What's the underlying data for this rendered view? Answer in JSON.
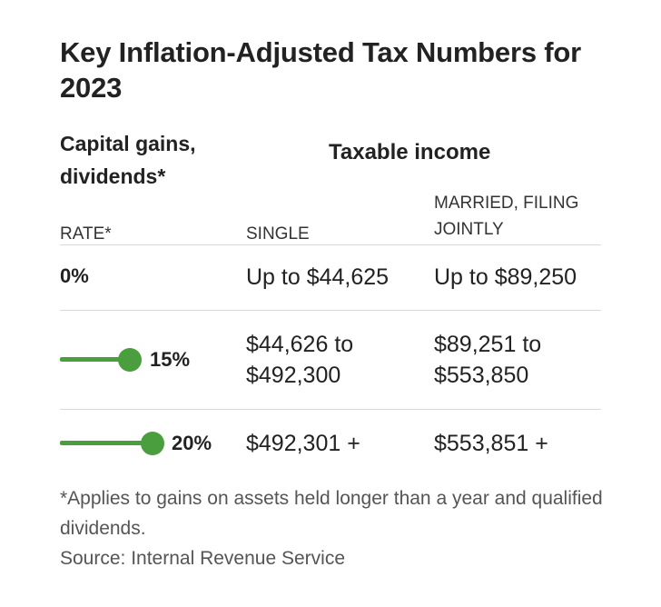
{
  "title": "Key Inflation-Adjusted Tax Numbers for 2023",
  "headers": {
    "capital_gains": "Capital gains, dividends*",
    "taxable_income": "Taxable income",
    "rate": "RATE*",
    "single": "SINGLE",
    "married": "MARRIED, FILING JOINTLY"
  },
  "rows": [
    {
      "rate": "0%",
      "single": "Up to $44,625",
      "married": "Up to $89,250"
    },
    {
      "rate": "15%",
      "single": "$44,626 to $492,300",
      "married": "$89,251 to $553,850"
    },
    {
      "rate": "20%",
      "single": "$492,301 +",
      "married": "$553,851 +"
    }
  ],
  "footnote": "*Applies to gains on assets held longer than a year and qualified dividends.",
  "source": "Source: Internal Revenue Service",
  "colors": {
    "bar": "#4a9e3e",
    "rule": "#d9d9d9"
  },
  "chart_data": {
    "type": "table",
    "columns": [
      "RATE*",
      "SINGLE",
      "MARRIED, FILING JOINTLY"
    ],
    "rates": [
      0,
      15,
      20
    ],
    "rows": [
      [
        "0%",
        "Up to $44,625",
        "Up to $89,250"
      ],
      [
        "15%",
        "$44,626 to $492,300",
        "$89,251 to $553,850"
      ],
      [
        "20%",
        "$492,301 +",
        "$553,851 +"
      ]
    ]
  }
}
